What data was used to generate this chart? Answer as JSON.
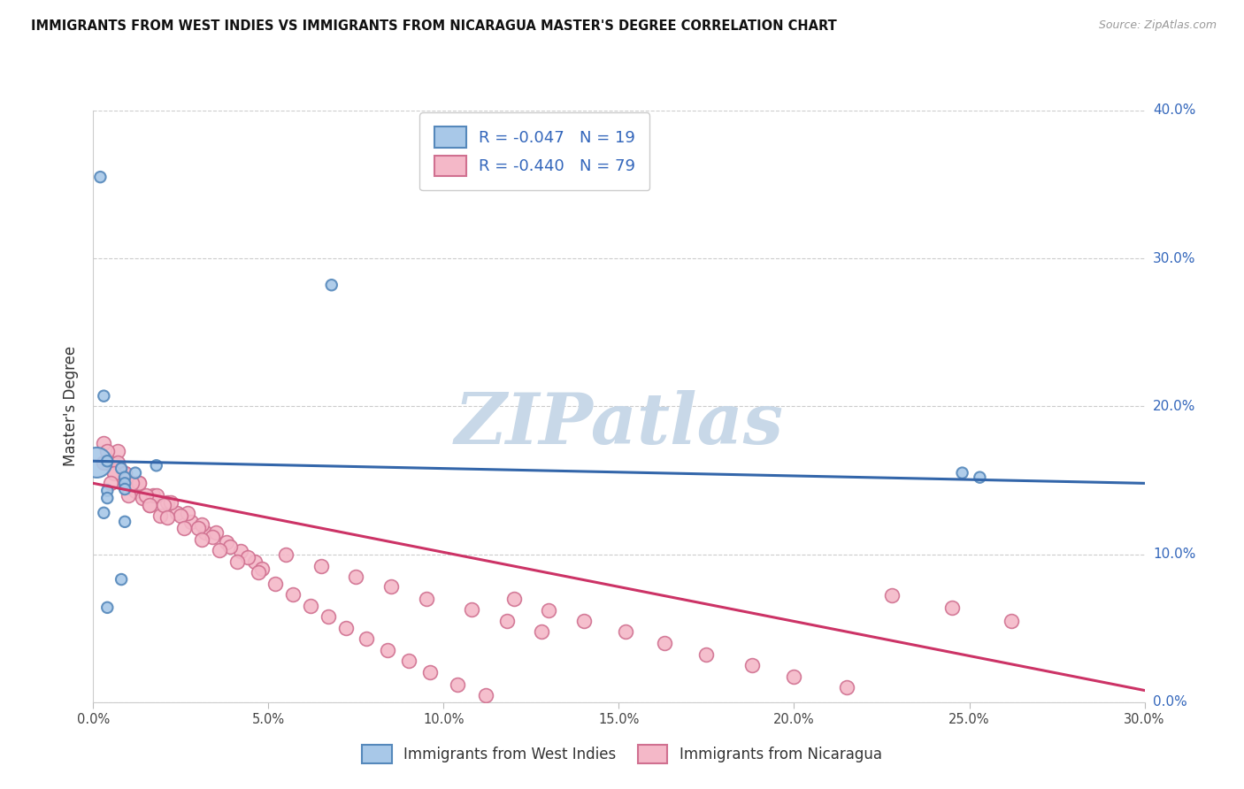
{
  "title": "IMMIGRANTS FROM WEST INDIES VS IMMIGRANTS FROM NICARAGUA MASTER'S DEGREE CORRELATION CHART",
  "source": "Source: ZipAtlas.com",
  "ylabel": "Master's Degree",
  "legend_label_1": "Immigrants from West Indies",
  "legend_label_2": "Immigrants from Nicaragua",
  "R1": -0.047,
  "N1": 19,
  "R2": -0.44,
  "N2": 79,
  "xlim": [
    0.0,
    0.3
  ],
  "ylim": [
    0.0,
    0.4
  ],
  "xticks": [
    0.0,
    0.05,
    0.1,
    0.15,
    0.2,
    0.25,
    0.3
  ],
  "yticks": [
    0.0,
    0.1,
    0.2,
    0.3,
    0.4
  ],
  "color_blue_fill": "#a8c8e8",
  "color_blue_edge": "#5588bb",
  "color_pink_fill": "#f4b8c8",
  "color_pink_edge": "#d07090",
  "color_blue_line": "#3366aa",
  "color_pink_line": "#cc3366",
  "color_legend_text": "#3366bb",
  "watermark_color": "#c8d8e8",
  "blue_x": [
    0.002,
    0.068,
    0.001,
    0.003,
    0.008,
    0.004,
    0.009,
    0.012,
    0.009,
    0.018,
    0.004,
    0.009,
    0.004,
    0.003,
    0.008,
    0.248,
    0.253,
    0.004,
    0.009
  ],
  "blue_y": [
    0.355,
    0.282,
    0.162,
    0.207,
    0.158,
    0.163,
    0.152,
    0.155,
    0.148,
    0.16,
    0.143,
    0.144,
    0.138,
    0.128,
    0.083,
    0.155,
    0.152,
    0.064,
    0.122
  ],
  "blue_sizes": [
    80,
    80,
    600,
    80,
    80,
    80,
    80,
    80,
    80,
    80,
    80,
    80,
    80,
    80,
    80,
    80,
    80,
    80,
    80
  ],
  "pink_x": [
    0.003,
    0.007,
    0.004,
    0.006,
    0.009,
    0.012,
    0.014,
    0.016,
    0.019,
    0.004,
    0.007,
    0.009,
    0.013,
    0.017,
    0.021,
    0.024,
    0.028,
    0.032,
    0.009,
    0.013,
    0.018,
    0.022,
    0.027,
    0.031,
    0.035,
    0.038,
    0.042,
    0.046,
    0.003,
    0.006,
    0.011,
    0.015,
    0.02,
    0.025,
    0.03,
    0.034,
    0.039,
    0.044,
    0.048,
    0.005,
    0.01,
    0.016,
    0.021,
    0.026,
    0.031,
    0.036,
    0.041,
    0.047,
    0.052,
    0.057,
    0.062,
    0.067,
    0.072,
    0.078,
    0.084,
    0.09,
    0.096,
    0.104,
    0.112,
    0.12,
    0.13,
    0.14,
    0.152,
    0.163,
    0.175,
    0.188,
    0.2,
    0.215,
    0.228,
    0.245,
    0.262,
    0.055,
    0.065,
    0.075,
    0.085,
    0.095,
    0.108,
    0.118,
    0.128
  ],
  "pink_y": [
    0.175,
    0.17,
    0.162,
    0.156,
    0.148,
    0.143,
    0.138,
    0.133,
    0.126,
    0.17,
    0.162,
    0.155,
    0.148,
    0.14,
    0.135,
    0.128,
    0.122,
    0.115,
    0.155,
    0.148,
    0.14,
    0.135,
    0.128,
    0.12,
    0.115,
    0.108,
    0.102,
    0.095,
    0.162,
    0.155,
    0.148,
    0.14,
    0.133,
    0.126,
    0.118,
    0.112,
    0.105,
    0.098,
    0.09,
    0.148,
    0.14,
    0.133,
    0.125,
    0.118,
    0.11,
    0.103,
    0.095,
    0.088,
    0.08,
    0.073,
    0.065,
    0.058,
    0.05,
    0.043,
    0.035,
    0.028,
    0.02,
    0.012,
    0.005,
    0.07,
    0.062,
    0.055,
    0.048,
    0.04,
    0.032,
    0.025,
    0.017,
    0.01,
    0.072,
    0.064,
    0.055,
    0.1,
    0.092,
    0.085,
    0.078,
    0.07,
    0.063,
    0.055,
    0.048
  ],
  "blue_trendline_x": [
    0.0,
    0.3
  ],
  "blue_trendline_y": [
    0.163,
    0.148
  ],
  "pink_trendline_x": [
    0.0,
    0.3
  ],
  "pink_trendline_y": [
    0.148,
    0.008
  ]
}
